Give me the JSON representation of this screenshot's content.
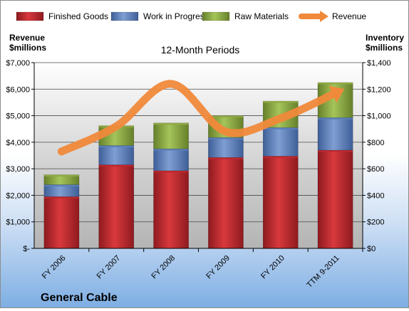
{
  "chart_data": {
    "type": "bar",
    "title": "12-Month Periods",
    "company": "General Cable",
    "left_axis_title": [
      "Revenue",
      "$millions"
    ],
    "right_axis_title": [
      "Inventory",
      "$millions"
    ],
    "categories": [
      "FY 2006",
      "FY 2007",
      "FY 2008",
      "FY 2009",
      "FY 2010",
      "TTM 9-2011"
    ],
    "series": [
      {
        "name": "Finished Goods",
        "type": "bar",
        "axis": "right",
        "color": "#c0282d",
        "values": [
          390,
          630,
          585,
          685,
          695,
          740
        ]
      },
      {
        "name": "Work in Progress",
        "type": "bar",
        "axis": "right",
        "color": "#5b7fbf",
        "values": [
          90,
          145,
          165,
          150,
          215,
          245
        ]
      },
      {
        "name": "Raw Materials",
        "type": "bar",
        "axis": "right",
        "color": "#8faa45",
        "values": [
          75,
          150,
          195,
          165,
          200,
          265
        ]
      },
      {
        "name": "Revenue",
        "type": "line",
        "axis": "left",
        "color": "#f0893a",
        "values": [
          3650,
          4600,
          6200,
          4400,
          4900,
          5850
        ]
      }
    ],
    "left_axis": {
      "min": 0,
      "max": 7000,
      "ticks": [
        "$-",
        "$1,000",
        "$2,000",
        "$3,000",
        "$4,000",
        "$5,000",
        "$6,000",
        "$7,000"
      ]
    },
    "right_axis": {
      "min": 0,
      "max": 1400,
      "ticks": [
        "$0",
        "$200",
        "$400",
        "$600",
        "$800",
        "$1,000",
        "$1,200",
        "$1,400"
      ]
    },
    "grid": true,
    "legend": "top"
  }
}
